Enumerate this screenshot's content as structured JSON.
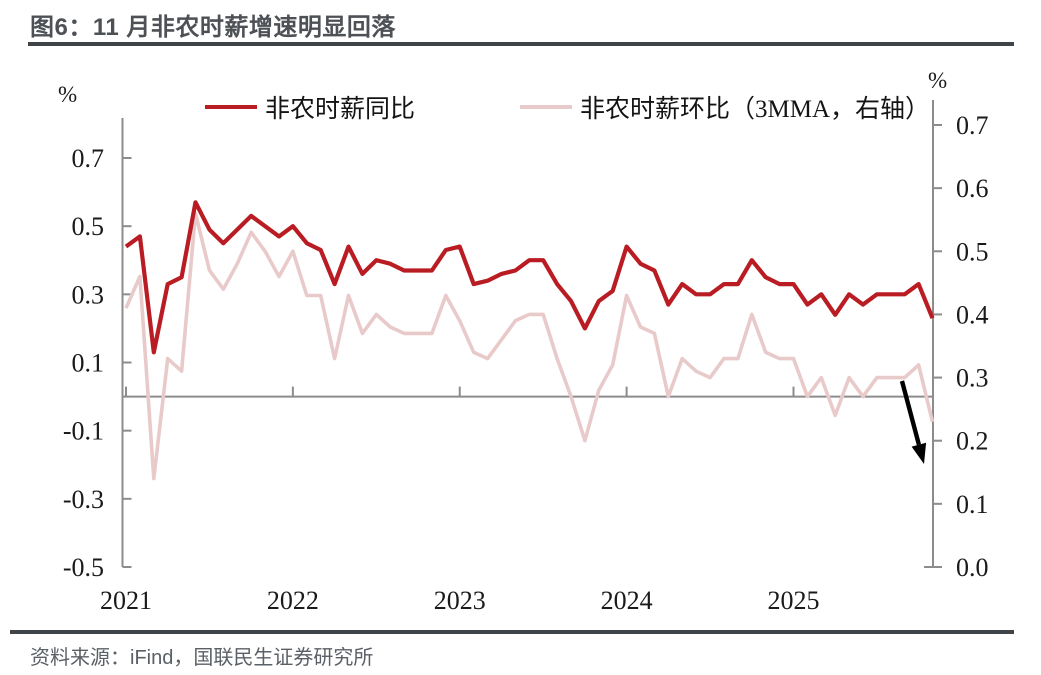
{
  "header": {
    "title": "图6：11 月非农时薪增速明显回落"
  },
  "footer": {
    "source": "资料来源：iFind，国联民生证券研究所"
  },
  "legend": {
    "series1_label": "非农时薪同比",
    "series2_label": "非农时薪环比（3MMA，右轴）"
  },
  "axes": {
    "left_unit": "%",
    "right_unit": "%",
    "left_ticks": [
      "0.7",
      "0.5",
      "0.3",
      "0.1",
      "-0.1",
      "-0.3",
      "-0.5"
    ],
    "right_ticks": [
      "0.7",
      "0.6",
      "0.5",
      "0.4",
      "0.3",
      "0.2",
      "0.1",
      "0.0"
    ],
    "years": [
      "2021",
      "2022",
      "2023",
      "2024",
      "2025"
    ]
  },
  "colors": {
    "series1": "#b91c22",
    "series2": "#e9caca",
    "axis": "#8c8c8c",
    "rule": "#3f4448",
    "title_text": "#4d5156",
    "source_text": "#5a6066",
    "arrow": "#000000"
  },
  "chart_data": {
    "type": "line",
    "frequency": "monthly",
    "x_start": "2021-01",
    "x_end": "2025-11",
    "left_axis_range": [
      -0.5,
      0.7
    ],
    "right_axis_range": [
      0.0,
      0.7
    ],
    "grid": "zero-line-only",
    "legend_position": "top",
    "x": [
      "2021-01",
      "2021-02",
      "2021-03",
      "2021-04",
      "2021-05",
      "2021-06",
      "2021-07",
      "2021-08",
      "2021-09",
      "2021-10",
      "2021-11",
      "2021-12",
      "2022-01",
      "2022-02",
      "2022-03",
      "2022-04",
      "2022-05",
      "2022-06",
      "2022-07",
      "2022-08",
      "2022-09",
      "2022-10",
      "2022-11",
      "2022-12",
      "2023-01",
      "2023-02",
      "2023-03",
      "2023-04",
      "2023-05",
      "2023-06",
      "2023-07",
      "2023-08",
      "2023-09",
      "2023-10",
      "2023-11",
      "2023-12",
      "2024-01",
      "2024-02",
      "2024-03",
      "2024-04",
      "2024-05",
      "2024-06",
      "2024-07",
      "2024-08",
      "2024-09",
      "2024-10",
      "2024-11",
      "2024-12",
      "2025-01",
      "2025-02",
      "2025-03",
      "2025-04",
      "2025-05",
      "2025-06",
      "2025-07",
      "2025-08",
      "2025-09",
      "2025-10",
      "2025-11"
    ],
    "series": [
      {
        "name": "非农时薪同比",
        "axis": "left",
        "color": "#b91c22",
        "values": [
          0.44,
          0.47,
          0.13,
          0.33,
          0.35,
          0.57,
          0.49,
          0.45,
          0.49,
          0.53,
          0.5,
          0.47,
          0.5,
          0.45,
          0.43,
          0.33,
          0.44,
          0.36,
          0.4,
          0.39,
          0.37,
          0.37,
          0.37,
          0.43,
          0.44,
          0.33,
          0.34,
          0.36,
          0.37,
          0.4,
          0.4,
          0.33,
          0.28,
          0.2,
          0.28,
          0.31,
          0.44,
          0.39,
          0.37,
          0.27,
          0.33,
          0.3,
          0.3,
          0.33,
          0.33,
          0.4,
          0.35,
          0.33,
          0.33,
          0.27,
          0.3,
          0.24,
          0.3,
          0.27,
          0.3,
          0.3,
          0.3,
          0.33,
          0.23
        ]
      },
      {
        "name": "非农时薪环比（3MMA，右轴）",
        "axis": "right",
        "color": "#e9caca",
        "values": [
          0.41,
          0.46,
          0.14,
          0.33,
          0.31,
          0.56,
          0.47,
          0.44,
          0.48,
          0.53,
          0.5,
          0.46,
          0.5,
          0.43,
          0.43,
          0.33,
          0.43,
          0.37,
          0.4,
          0.38,
          0.37,
          0.37,
          0.37,
          0.43,
          0.39,
          0.34,
          0.33,
          0.36,
          0.39,
          0.4,
          0.4,
          0.33,
          0.27,
          0.2,
          0.28,
          0.32,
          0.43,
          0.38,
          0.37,
          0.27,
          0.33,
          0.31,
          0.3,
          0.33,
          0.33,
          0.4,
          0.34,
          0.33,
          0.33,
          0.27,
          0.3,
          0.24,
          0.3,
          0.27,
          0.3,
          0.3,
          0.3,
          0.32,
          0.23
        ]
      }
    ],
    "annotations": [
      {
        "type": "arrow",
        "direction": "down-right",
        "meaning": "最后一期回落"
      }
    ]
  }
}
